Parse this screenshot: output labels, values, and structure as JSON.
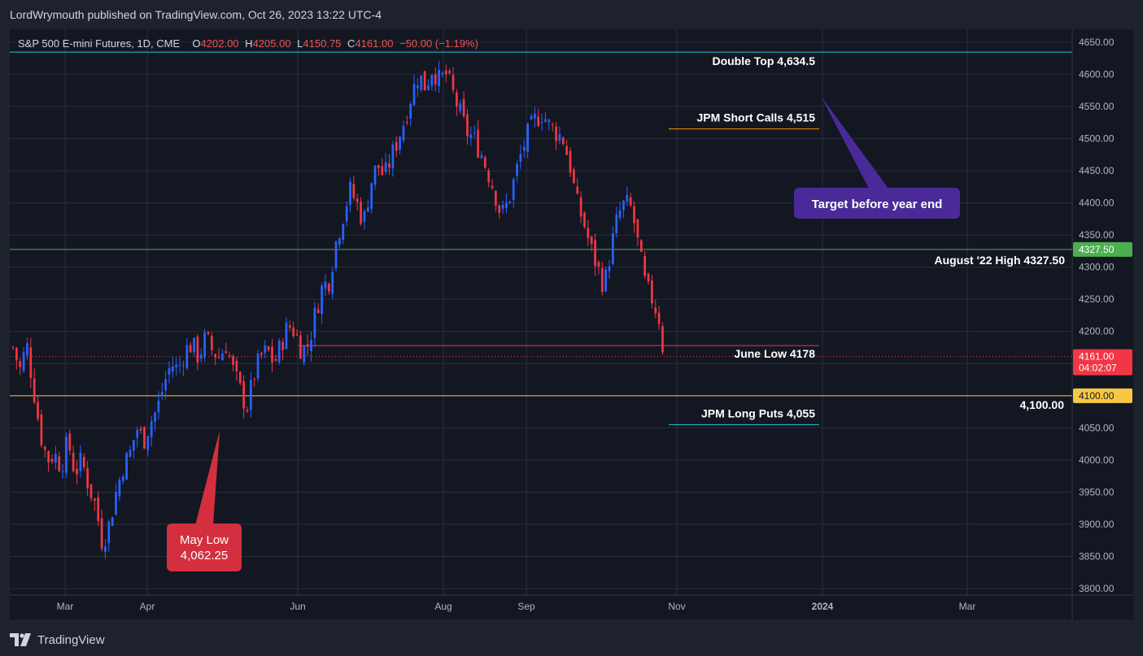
{
  "header": {
    "publisher_line": "LordWrymouth published on TradingView.com, Oct 26, 2023 13:22 UTC-4"
  },
  "legend": {
    "symbol": "S&P 500 E-mini Futures, 1D, CME",
    "o_key": "O",
    "o_val": "4202.00",
    "h_key": "H",
    "h_val": "4205.00",
    "l_key": "L",
    "l_val": "4150.75",
    "c_key": "C",
    "c_val": "4161.00",
    "change": "−50.00 (−1.19%)"
  },
  "footer": {
    "brand": "TradingView"
  },
  "colors": {
    "up": "#2962ff",
    "down": "#f23645",
    "bg": "#131722",
    "grid": "#2a2e39",
    "green": "#4caf50",
    "yellow": "#f7c843",
    "cyan": "#26c6da",
    "orange": "#ff9800",
    "purple": "#4a2a99",
    "red_bubble": "#d32f3f"
  },
  "chart_data": {
    "type": "candlestick",
    "title": "S&P 500 E-mini Futures, 1D, CME",
    "ylim": [
      3790,
      4670
    ],
    "y_ticks": [
      "4650.00",
      "4600.00",
      "4550.00",
      "4500.00",
      "4450.00",
      "4400.00",
      "4350.00",
      "4300.00",
      "4250.00",
      "4200.00",
      "4150.00",
      "4100.00",
      "4050.00",
      "4000.00",
      "3950.00",
      "3900.00",
      "3850.00",
      "3800.00"
    ],
    "x_labels": [
      "Mar",
      "Apr",
      "Jun",
      "Aug",
      "Sep",
      "Nov",
      "2024",
      "Mar"
    ],
    "last_price_label": "4161.00",
    "countdown_label": "04:02:07",
    "levels": [
      {
        "name": "double-top",
        "value": 4634.5,
        "label": "Double Top 4,634.5",
        "color": "cyan"
      },
      {
        "name": "jpm-short-calls",
        "value": 4515,
        "label": "JPM Short Calls 4,515",
        "color": "orange"
      },
      {
        "name": "august-high",
        "value": 4327.5,
        "label": "August '22 High 4327.50",
        "axis_label": "4327.50",
        "color": "green"
      },
      {
        "name": "june-low",
        "value": 4178,
        "label": "June Low 4178",
        "color": "red"
      },
      {
        "name": "round-4100",
        "value": 4100,
        "label": "4,100.00",
        "axis_label": "4100.00",
        "color": "yellow"
      },
      {
        "name": "jpm-long-puts",
        "value": 4055,
        "label": "JPM Long Puts 4,055",
        "color": "cyan"
      }
    ],
    "callouts": {
      "target": "Target before year end",
      "may_low_line1": "May Low",
      "may_low_line2": "4,062.25"
    },
    "close_path": [
      [
        0,
        4175
      ],
      [
        3,
        4140
      ],
      [
        6,
        4180
      ],
      [
        9,
        4110
      ],
      [
        12,
        4040
      ],
      [
        15,
        4000
      ],
      [
        18,
        4010
      ],
      [
        21,
        3990
      ],
      [
        24,
        4030
      ],
      [
        27,
        3980
      ],
      [
        30,
        4000
      ],
      [
        33,
        3960
      ],
      [
        36,
        3930
      ],
      [
        39,
        3870
      ],
      [
        42,
        3900
      ],
      [
        45,
        3950
      ],
      [
        48,
        3990
      ],
      [
        51,
        4010
      ],
      [
        54,
        4050
      ],
      [
        57,
        4030
      ],
      [
        60,
        4060
      ],
      [
        63,
        4080
      ],
      [
        66,
        4120
      ],
      [
        69,
        4150
      ],
      [
        72,
        4140
      ],
      [
        75,
        4170
      ],
      [
        78,
        4180
      ],
      [
        81,
        4160
      ],
      [
        84,
        4190
      ],
      [
        87,
        4170
      ],
      [
        90,
        4160
      ],
      [
        93,
        4180
      ],
      [
        96,
        4140
      ],
      [
        99,
        4110
      ],
      [
        102,
        4080
      ],
      [
        105,
        4130
      ],
      [
        108,
        4160
      ],
      [
        111,
        4170
      ],
      [
        114,
        4150
      ],
      [
        117,
        4180
      ],
      [
        120,
        4210
      ],
      [
        123,
        4200
      ],
      [
        126,
        4170
      ],
      [
        129,
        4180
      ],
      [
        132,
        4230
      ],
      [
        135,
        4270
      ],
      [
        138,
        4280
      ],
      [
        141,
        4340
      ],
      [
        144,
        4380
      ],
      [
        147,
        4420
      ],
      [
        150,
        4400
      ],
      [
        153,
        4370
      ],
      [
        156,
        4430
      ],
      [
        159,
        4460
      ],
      [
        162,
        4440
      ],
      [
        165,
        4470
      ],
      [
        168,
        4500
      ],
      [
        171,
        4530
      ],
      [
        174,
        4570
      ],
      [
        177,
        4600
      ],
      [
        180,
        4580
      ],
      [
        183,
        4610
      ],
      [
        186,
        4590
      ],
      [
        189,
        4600
      ],
      [
        192,
        4570
      ],
      [
        195,
        4540
      ],
      [
        198,
        4510
      ],
      [
        201,
        4500
      ],
      [
        204,
        4480
      ],
      [
        207,
        4450
      ],
      [
        210,
        4420
      ],
      [
        213,
        4380
      ],
      [
        216,
        4400
      ],
      [
        219,
        4440
      ],
      [
        222,
        4480
      ],
      [
        225,
        4510
      ],
      [
        228,
        4530
      ],
      [
        231,
        4540
      ],
      [
        234,
        4520
      ],
      [
        237,
        4510
      ],
      [
        240,
        4500
      ],
      [
        243,
        4460
      ],
      [
        246,
        4400
      ],
      [
        249,
        4370
      ],
      [
        252,
        4330
      ],
      [
        255,
        4300
      ],
      [
        258,
        4270
      ],
      [
        261,
        4330
      ],
      [
        264,
        4380
      ],
      [
        267,
        4400
      ],
      [
        270,
        4390
      ],
      [
        273,
        4330
      ],
      [
        276,
        4270
      ],
      [
        279,
        4250
      ],
      [
        282,
        4220
      ],
      [
        284,
        4161
      ]
    ],
    "candle_count": 184,
    "day_span": 285,
    "candle_width_days": 1.3
  }
}
